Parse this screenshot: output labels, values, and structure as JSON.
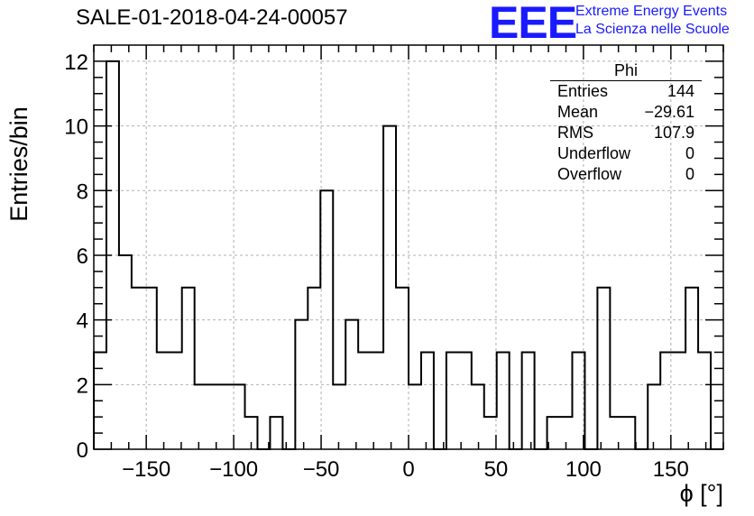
{
  "header": {
    "title": "SALE-01-2018-04-24-00057",
    "logo": "EEE",
    "logo_line1": "Extreme Energy Events",
    "logo_line2": "La Scienza nelle Scuole"
  },
  "stats": {
    "name": "Phi",
    "rows": [
      {
        "label": "Entries",
        "value": "144"
      },
      {
        "label": "Mean",
        "value": "−29.61"
      },
      {
        "label": "RMS",
        "value": "107.9"
      },
      {
        "label": "Underflow",
        "value": "0"
      },
      {
        "label": "Overflow",
        "value": "0"
      }
    ]
  },
  "chart_data": {
    "type": "bar",
    "title": "SALE-01-2018-04-24-00057",
    "xlabel": "ϕ [°]",
    "ylabel": "Entries/bin",
    "xlim": [
      -180,
      180
    ],
    "ylim": [
      0,
      12.5
    ],
    "bin_width": 7.2,
    "grid": true,
    "bin_values": [
      3,
      12,
      6,
      5,
      5,
      3,
      3,
      5,
      2,
      2,
      2,
      2,
      1,
      0,
      1,
      0,
      4,
      5,
      8,
      2,
      4,
      3,
      3,
      10,
      5,
      2,
      3,
      0,
      3,
      3,
      2,
      1,
      3,
      0,
      3,
      0,
      1,
      1,
      3,
      0,
      5,
      1,
      1,
      0,
      2,
      3,
      3,
      5,
      3,
      0
    ],
    "x_ticks": [
      -150,
      -100,
      -50,
      0,
      50,
      100,
      150
    ],
    "x_tick_labels": [
      "−150",
      "−100",
      "−50",
      "0",
      "50",
      "100",
      "150"
    ],
    "y_ticks": [
      0,
      2,
      4,
      6,
      8,
      10,
      12
    ],
    "y_tick_labels": [
      "0",
      "2",
      "4",
      "6",
      "8",
      "10",
      "12"
    ]
  }
}
